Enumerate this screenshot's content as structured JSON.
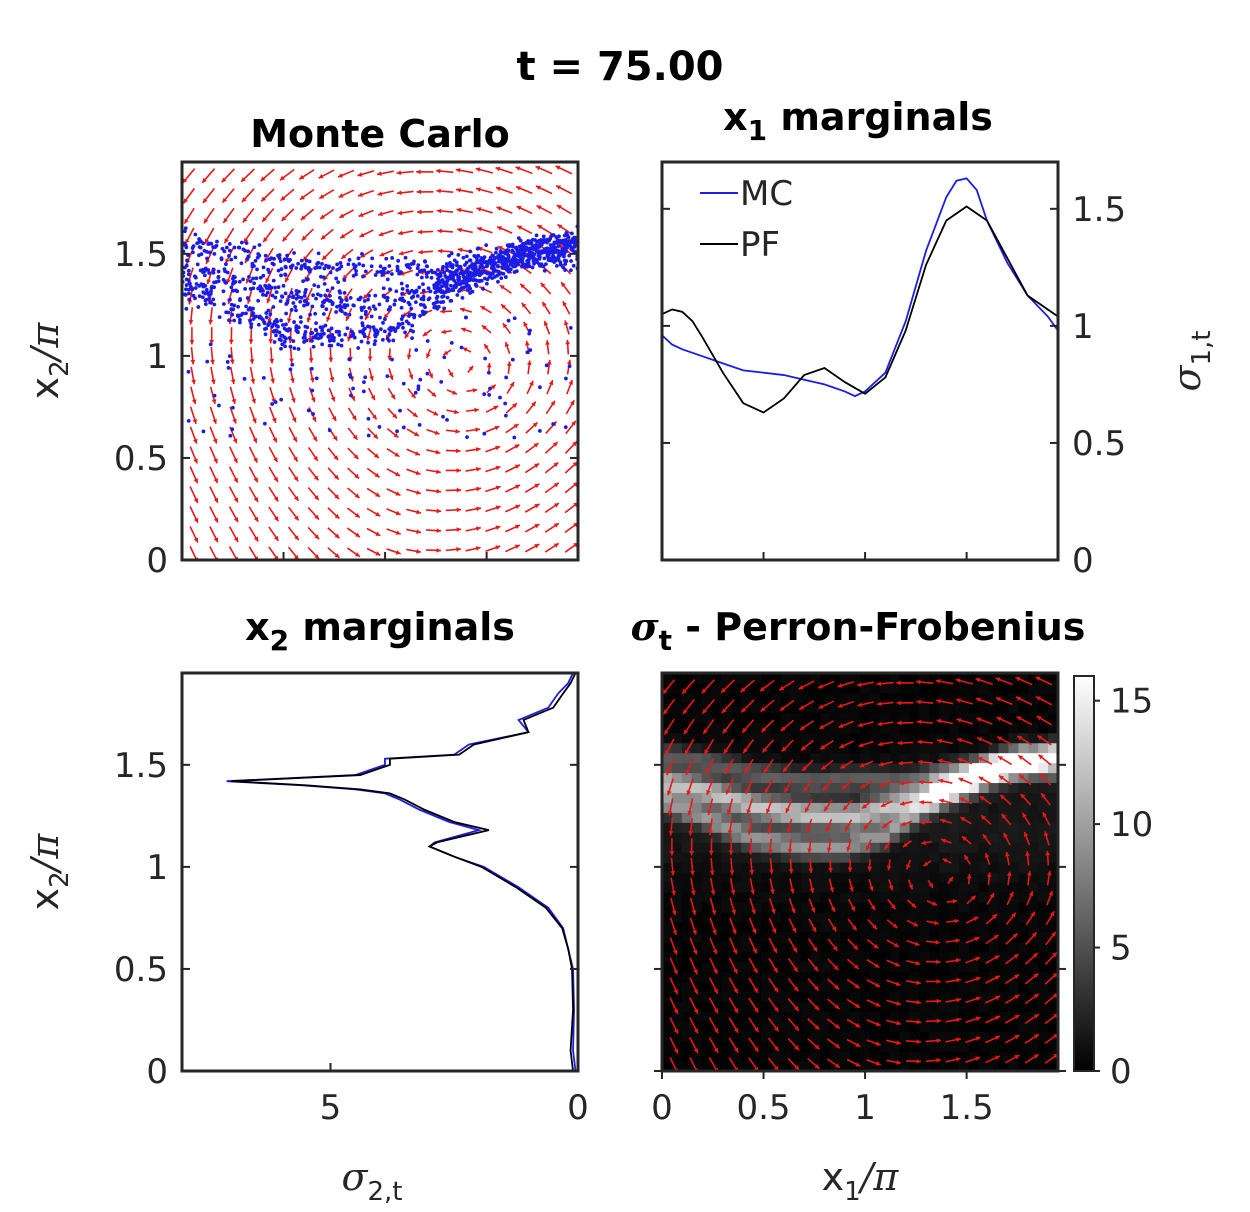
{
  "figure_title": "t = 75.00",
  "chart_data": [
    {
      "id": "mc",
      "type": "scatter",
      "title": "Monte Carlo",
      "ylabel_base": "x",
      "ylabel_sub": "2",
      "ylabel_tail": "/π",
      "ylim": [
        0,
        1.95
      ],
      "xlim": [
        0,
        1.95
      ],
      "yticks": [
        0,
        0.5,
        1,
        1.5
      ],
      "ytick_labels": [
        "0",
        "0.5",
        "1",
        "1.5"
      ],
      "xtick_labels": [],
      "point_color": "#1c1ce6",
      "arrow_color": "#e61919",
      "bands": [
        {
          "x": [
            0,
            0.2,
            0.45,
            0.7,
            0.95,
            1.2,
            1.5,
            1.75,
            1.95
          ],
          "y": [
            1.42,
            1.38,
            1.3,
            1.26,
            1.25,
            1.32,
            1.42,
            1.52,
            1.55
          ]
        },
        {
          "x": [
            0,
            0.2,
            0.45,
            0.7,
            0.95,
            1.2,
            1.45,
            1.7,
            1.95
          ],
          "y": [
            1.55,
            1.52,
            1.46,
            1.42,
            1.43,
            1.42,
            1.48,
            1.5,
            1.46
          ]
        },
        {
          "x": [
            0,
            0.2,
            0.45,
            0.7,
            0.9,
            1.1,
            1.3,
            1.6,
            1.95
          ],
          "y": [
            1.32,
            1.25,
            1.14,
            1.1,
            1.1,
            1.16,
            1.3,
            1.48,
            1.55
          ]
        }
      ]
    },
    {
      "id": "x1m",
      "type": "line",
      "title_base": "x",
      "title_sub": "1",
      "title_tail": " marginals",
      "ylabel_base": "σ",
      "ylabel_sub": "1,t",
      "ylim": [
        0,
        1.7
      ],
      "xlim": [
        0,
        1.95
      ],
      "yticks": [
        0,
        0.5,
        1,
        1.5
      ],
      "ytick_labels": [
        "0",
        "0.5",
        "1",
        "1.5"
      ],
      "series": [
        {
          "name": "MC",
          "color": "#1c1ce6",
          "x": [
            0,
            0.05,
            0.1,
            0.2,
            0.3,
            0.4,
            0.5,
            0.6,
            0.7,
            0.8,
            0.9,
            0.95,
            1.0,
            1.1,
            1.2,
            1.3,
            1.4,
            1.45,
            1.5,
            1.55,
            1.6,
            1.7,
            1.8,
            1.9,
            1.95
          ],
          "y": [
            0.96,
            0.92,
            0.9,
            0.87,
            0.84,
            0.81,
            0.8,
            0.79,
            0.77,
            0.75,
            0.72,
            0.7,
            0.72,
            0.8,
            1.02,
            1.32,
            1.55,
            1.62,
            1.63,
            1.58,
            1.45,
            1.27,
            1.13,
            1.04,
            0.98
          ]
        },
        {
          "name": "PF",
          "color": "#000000",
          "x": [
            0,
            0.05,
            0.1,
            0.15,
            0.2,
            0.3,
            0.4,
            0.5,
            0.6,
            0.7,
            0.8,
            0.9,
            1.0,
            1.1,
            1.2,
            1.3,
            1.4,
            1.5,
            1.6,
            1.7,
            1.8,
            1.9,
            1.95
          ],
          "y": [
            1.05,
            1.07,
            1.06,
            1.02,
            0.95,
            0.8,
            0.67,
            0.63,
            0.69,
            0.79,
            0.82,
            0.76,
            0.71,
            0.78,
            0.98,
            1.26,
            1.45,
            1.51,
            1.45,
            1.29,
            1.13,
            1.07,
            1.04
          ]
        }
      ],
      "legend": {
        "placement": "top-left",
        "entries": [
          "MC",
          "PF"
        ]
      }
    },
    {
      "id": "x2m",
      "type": "line",
      "title_base": "x",
      "title_sub": "2",
      "title_tail": " marginals",
      "ylabel_base": "x",
      "ylabel_sub": "2",
      "ylabel_tail": "/π",
      "xlabel_base": "σ",
      "xlabel_sub": "2,t",
      "ylim": [
        0,
        1.95
      ],
      "xlim_reversed": [
        8,
        0
      ],
      "xticks": [
        5,
        0
      ],
      "xtick_labels": [
        "5",
        "0"
      ],
      "yticks": [
        0,
        0.5,
        1,
        1.5
      ],
      "ytick_labels": [
        "0",
        "0.5",
        "1",
        "1.5"
      ],
      "series": [
        {
          "name": "MC",
          "color": "#1c1ce6",
          "y": [
            0,
            0.1,
            0.3,
            0.5,
            0.6,
            0.7,
            0.8,
            0.9,
            1.0,
            1.05,
            1.1,
            1.12,
            1.18,
            1.22,
            1.28,
            1.33,
            1.36,
            1.38,
            1.4,
            1.42,
            1.45,
            1.5,
            1.53,
            1.55,
            1.6,
            1.66,
            1.72,
            1.78,
            1.85,
            1.9,
            1.95
          ],
          "x": [
            0.05,
            0.1,
            0.08,
            0.1,
            0.2,
            0.3,
            0.6,
            1.2,
            1.9,
            2.5,
            3.0,
            2.9,
            2.0,
            2.6,
            3.2,
            3.6,
            3.9,
            4.5,
            5.6,
            7.1,
            4.5,
            3.9,
            3.9,
            2.5,
            2.2,
            1.0,
            1.2,
            0.6,
            0.4,
            0.2,
            0.1
          ]
        },
        {
          "name": "PF",
          "color": "#000000",
          "y": [
            0,
            0.1,
            0.3,
            0.5,
            0.6,
            0.7,
            0.8,
            0.9,
            1.0,
            1.05,
            1.1,
            1.12,
            1.18,
            1.22,
            1.28,
            1.33,
            1.36,
            1.38,
            1.4,
            1.42,
            1.45,
            1.5,
            1.53,
            1.55,
            1.6,
            1.66,
            1.72,
            1.78,
            1.85,
            1.9,
            1.95
          ],
          "x": [
            0.1,
            0.15,
            0.1,
            0.12,
            0.2,
            0.32,
            0.65,
            1.25,
            1.95,
            2.5,
            3.0,
            2.85,
            1.8,
            2.5,
            3.1,
            3.5,
            3.8,
            4.4,
            5.5,
            7.0,
            4.4,
            3.8,
            3.8,
            2.4,
            2.1,
            1.0,
            1.1,
            0.5,
            0.3,
            0.15,
            0.05
          ]
        }
      ]
    },
    {
      "id": "pf",
      "type": "heatmap",
      "title_base": "σ",
      "title_sub": "t",
      "title_tail": " - Perron-Frobenius",
      "xlabel_base": "x",
      "xlabel_sub": "1",
      "xlabel_tail": "/π",
      "xlim": [
        0,
        1.95
      ],
      "ylim": [
        0,
        1.95
      ],
      "xticks": [
        0,
        0.5,
        1,
        1.5
      ],
      "xtick_labels": [
        "0",
        "0.5",
        "1",
        "1.5"
      ],
      "colorbar": {
        "min": 0,
        "max": 16,
        "ticks": [
          0,
          5,
          10,
          15
        ],
        "tick_labels": [
          "0",
          "5",
          "10",
          "15"
        ],
        "colormap": "gray"
      },
      "arrow_color": "#e61919"
    }
  ]
}
